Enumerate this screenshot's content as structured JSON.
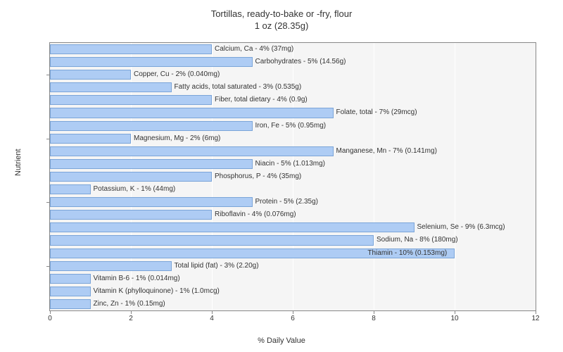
{
  "chart": {
    "type": "bar",
    "title_line1": "Tortillas, ready-to-bake or -fry, flour",
    "title_line2": "1 oz (28.35g)",
    "title_fontsize": 13,
    "xlabel": "% Daily Value",
    "ylabel": "Nutrient",
    "label_fontsize": 11,
    "xlim": [
      0,
      12
    ],
    "xtick_step": 2,
    "xticks": [
      0,
      2,
      4,
      6,
      8,
      10,
      12
    ],
    "background_color": "#f5f5f5",
    "grid_color": "#ffffff",
    "bar_color": "#aeccf4",
    "bar_border_color": "#7ba5d8",
    "bar_label_fontsize": 10,
    "text_color": "#333333",
    "plot_border_color": "#888888",
    "nutrients": [
      {
        "label": "Calcium, Ca - 4% (37mg)",
        "value": 4
      },
      {
        "label": "Carbohydrates - 5% (14.56g)",
        "value": 5
      },
      {
        "label": "Copper, Cu - 2% (0.040mg)",
        "value": 2
      },
      {
        "label": "Fatty acids, total saturated - 3% (0.535g)",
        "value": 3
      },
      {
        "label": "Fiber, total dietary - 4% (0.9g)",
        "value": 4
      },
      {
        "label": "Folate, total - 7% (29mcg)",
        "value": 7
      },
      {
        "label": "Iron, Fe - 5% (0.95mg)",
        "value": 5
      },
      {
        "label": "Magnesium, Mg - 2% (6mg)",
        "value": 2
      },
      {
        "label": "Manganese, Mn - 7% (0.141mg)",
        "value": 7
      },
      {
        "label": "Niacin - 5% (1.013mg)",
        "value": 5
      },
      {
        "label": "Phosphorus, P - 4% (35mg)",
        "value": 4
      },
      {
        "label": "Potassium, K - 1% (44mg)",
        "value": 1
      },
      {
        "label": "Protein - 5% (2.35g)",
        "value": 5
      },
      {
        "label": "Riboflavin - 4% (0.076mg)",
        "value": 4
      },
      {
        "label": "Selenium, Se - 9% (6.3mcg)",
        "value": 9
      },
      {
        "label": "Sodium, Na - 8% (180mg)",
        "value": 8
      },
      {
        "label": "Thiamin - 10% (0.153mg)",
        "value": 10
      },
      {
        "label": "Total lipid (fat) - 3% (2.20g)",
        "value": 3
      },
      {
        "label": "Vitamin B-6 - 1% (0.014mg)",
        "value": 1
      },
      {
        "label": "Vitamin K (phylloquinone) - 1% (1.0mcg)",
        "value": 1
      },
      {
        "label": "Zinc, Zn - 1% (0.15mg)",
        "value": 1
      }
    ],
    "y_group_ticks": [
      2,
      7,
      12,
      17
    ]
  }
}
